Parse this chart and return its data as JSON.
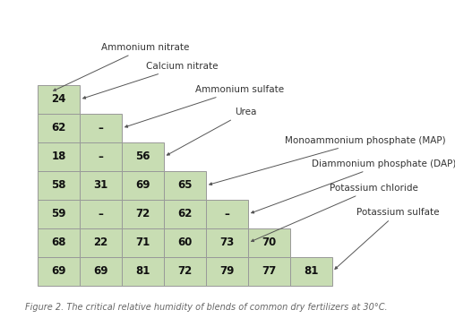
{
  "fertilizers": [
    "Ammonium nitrate",
    "Calcium nitrate",
    "Ammonium sulfate",
    "Urea",
    "Monoammonium phosphate (MAP)",
    "Diammonium phosphate (DAP)",
    "Potassium chloride",
    "Potassium sulfate"
  ],
  "table_data": [
    [
      "24",
      "",
      "",
      "",
      "",
      "",
      ""
    ],
    [
      "62",
      "–",
      "",
      "",
      "",
      "",
      ""
    ],
    [
      "18",
      "–",
      "56",
      "",
      "",
      "",
      ""
    ],
    [
      "58",
      "31",
      "69",
      "65",
      "",
      "",
      ""
    ],
    [
      "59",
      "–",
      "72",
      "62",
      "–",
      "",
      ""
    ],
    [
      "68",
      "22",
      "71",
      "60",
      "73",
      "70",
      ""
    ],
    [
      "69",
      "69",
      "81",
      "72",
      "79",
      "77",
      "81"
    ]
  ],
  "cell_color": "#c8ddb3",
  "cell_edge_color": "#999999",
  "background_color": "#ffffff",
  "text_color": "#111111",
  "label_color": "#333333",
  "caption": "Figure 2. The critical relative humidity of blends of common dry fertilizers at 30°C.",
  "fig_width": 5.08,
  "fig_height": 3.65,
  "font_size": 8.5,
  "label_font_size": 7.5,
  "caption_font_size": 7.0
}
